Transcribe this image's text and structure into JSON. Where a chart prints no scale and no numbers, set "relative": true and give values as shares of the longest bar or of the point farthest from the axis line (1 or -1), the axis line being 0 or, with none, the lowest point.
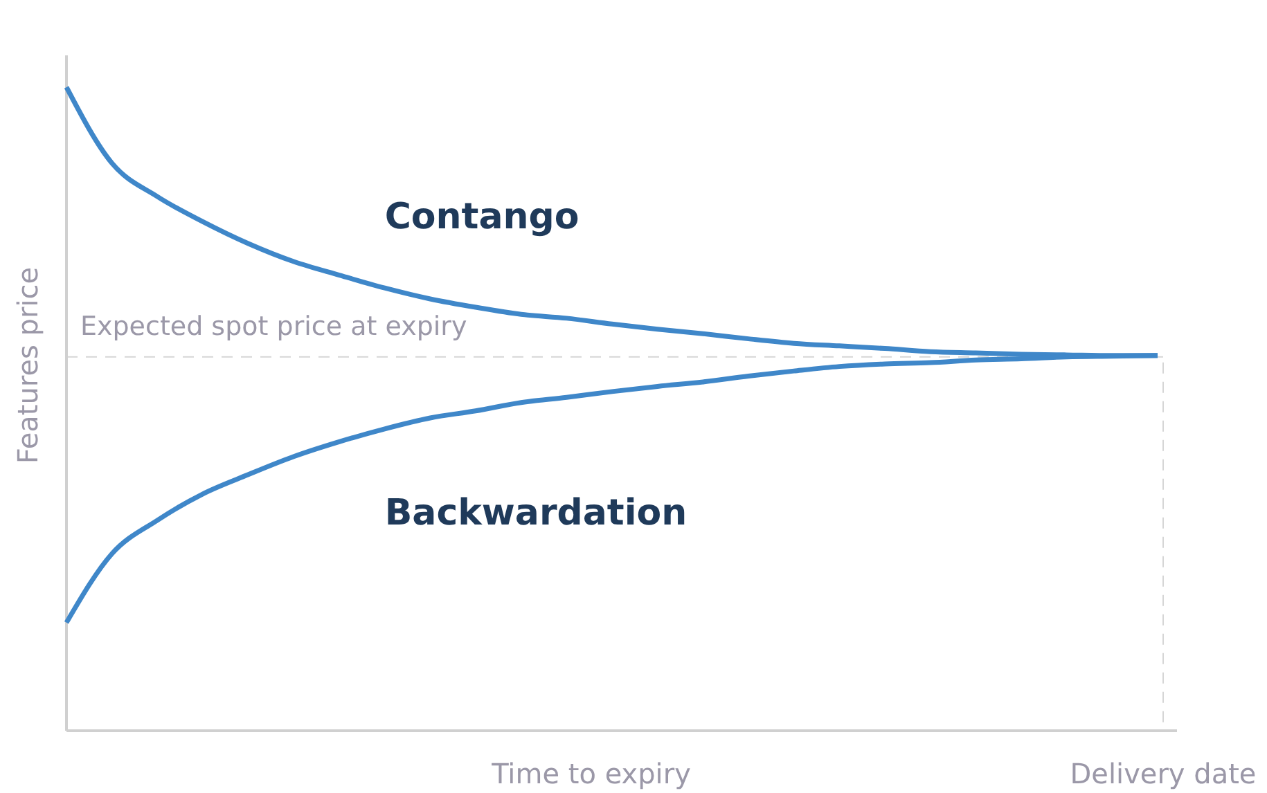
{
  "chart_data": {
    "type": "line",
    "relative": true,
    "xlabel": "Time to expiry",
    "ylabel": "Features price",
    "categories": [
      null,
      null,
      null,
      null,
      null,
      null,
      null,
      null,
      null,
      null,
      null,
      null,
      null,
      null,
      null,
      null,
      null,
      null,
      null,
      null,
      null,
      null,
      null,
      null,
      null
    ],
    "series": [
      {
        "name": "Contango",
        "color": "#3f87c9",
        "values": [
          1,
          0.882,
          0.83,
          0.791,
          0.757,
          0.729,
          0.708,
          0.688,
          0.671,
          0.658,
          0.647,
          0.641,
          0.632,
          0.624,
          0.617,
          0.609,
          0.602,
          0.598,
          0.594,
          0.589,
          0.587,
          0.585,
          0.584,
          0.583,
          0.583
        ]
      },
      {
        "name": "Backwardation",
        "color": "#3f87c9",
        "values": [
          0.168,
          0.275,
          0.327,
          0.368,
          0.398,
          0.426,
          0.449,
          0.469,
          0.486,
          0.497,
          0.51,
          0.518,
          0.527,
          0.535,
          0.542,
          0.551,
          0.559,
          0.566,
          0.57,
          0.572,
          0.576,
          0.578,
          0.581,
          0.582,
          0.583
        ]
      }
    ],
    "ref_lines": [
      {
        "axis": "y",
        "value": 0.581,
        "label": "Expected spot price at expiry",
        "line_style": "dashed"
      },
      {
        "axis": "x",
        "value": "Delivery date",
        "line_style": "dashed"
      }
    ],
    "marker": "none",
    "line_style": "solid"
  }
}
